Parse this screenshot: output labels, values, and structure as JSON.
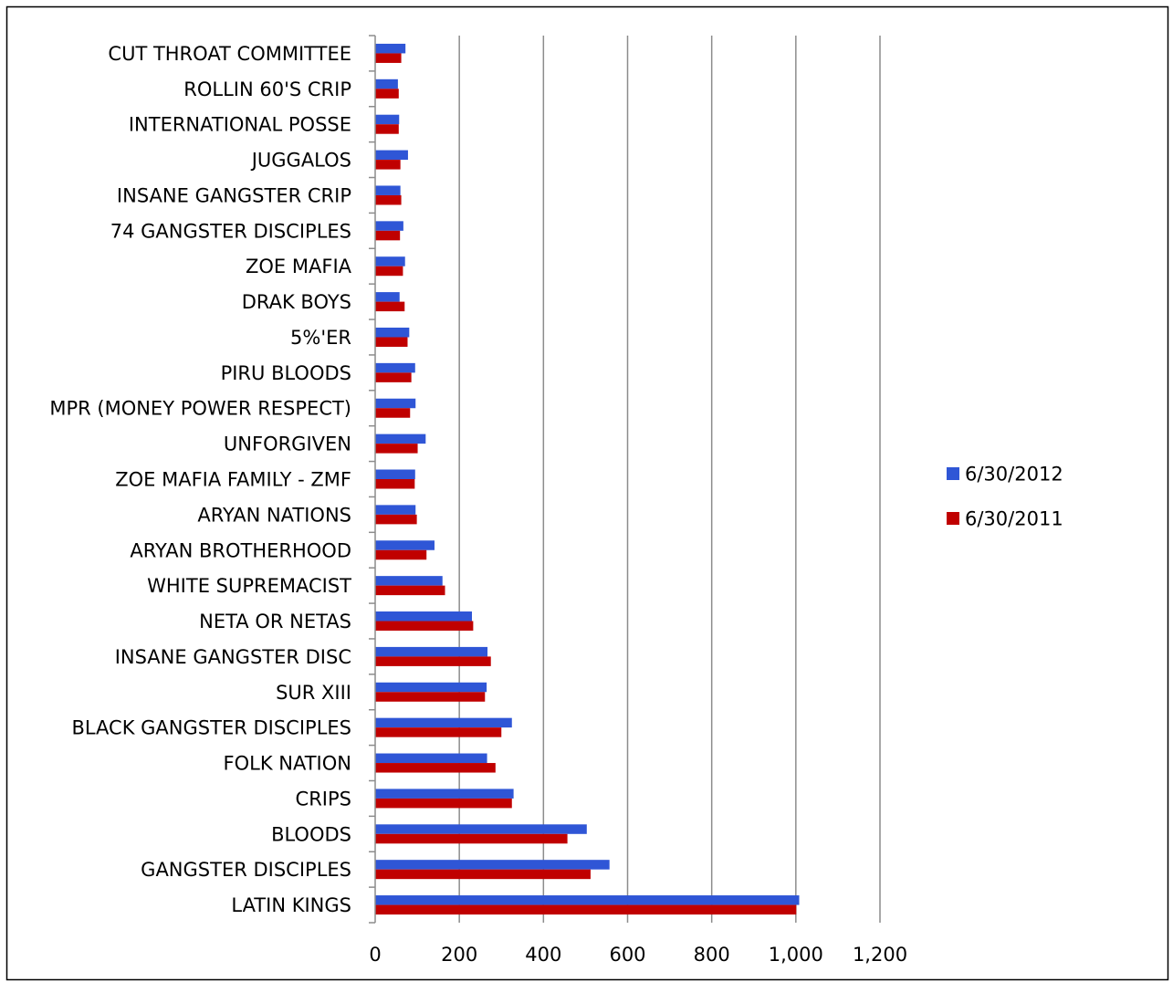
{
  "chart_data": {
    "type": "bar",
    "orientation": "horizontal",
    "title": "",
    "xlabel": "",
    "ylabel": "",
    "xlim": [
      0,
      1200
    ],
    "x_ticks": [
      0,
      200,
      400,
      600,
      800,
      1000,
      1200
    ],
    "x_tick_labels": [
      "0",
      "200",
      "400",
      "600",
      "800",
      "1,000",
      "1,200"
    ],
    "grid": "vertical",
    "legend_position": "right",
    "categories": [
      "CUT THROAT COMMITTEE",
      "ROLLIN 60'S CRIP",
      "INTERNATIONAL POSSE",
      "JUGGALOS",
      "INSANE GANGSTER CRIP",
      "74 GANGSTER DISCIPLES",
      "ZOE MAFIA",
      "DRAK BOYS",
      "5%'ER",
      "PIRU BLOODS",
      "MPR (MONEY POWER RESPECT)",
      "UNFORGIVEN",
      "ZOE MAFIA FAMILY - ZMF",
      "ARYAN NATIONS",
      "ARYAN BROTHERHOOD",
      "WHITE SUPREMACIST",
      "NETA OR NETAS",
      "INSANE GANGSTER DISC",
      "SUR XIII",
      "BLACK GANGSTER DISCIPLES",
      "FOLK NATION",
      "CRIPS",
      "BLOODS",
      "GANGSTER DISCIPLES",
      "LATIN KINGS"
    ],
    "series": [
      {
        "name": "6/30/2012",
        "color": "#2F56D6",
        "values": [
          72,
          54,
          57,
          78,
          60,
          67,
          71,
          58,
          81,
          95,
          96,
          120,
          95,
          96,
          141,
          160,
          230,
          267,
          265,
          325,
          266,
          329,
          503,
          557,
          1008
        ]
      },
      {
        "name": "6/30/2011",
        "color": "#C00000",
        "values": [
          62,
          56,
          56,
          60,
          62,
          59,
          66,
          70,
          77,
          86,
          83,
          101,
          94,
          99,
          122,
          166,
          233,
          275,
          261,
          300,
          286,
          325,
          457,
          512,
          1001
        ]
      }
    ]
  }
}
